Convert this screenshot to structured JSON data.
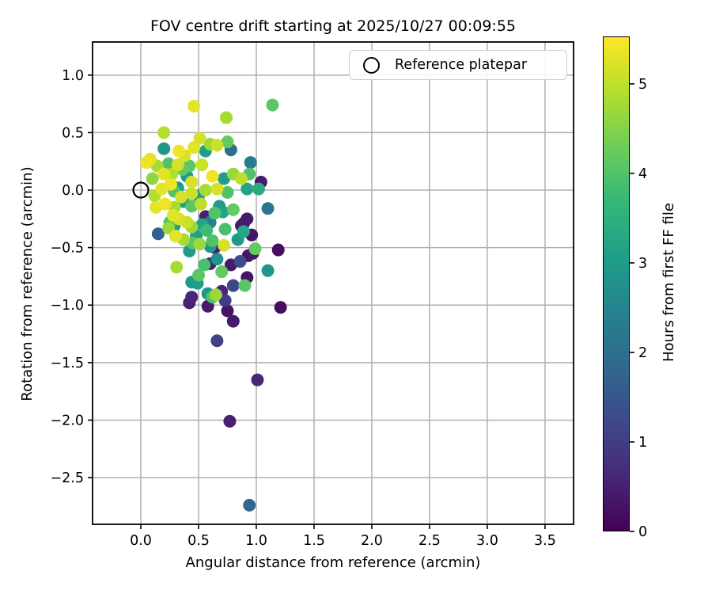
{
  "title": "FOV centre drift starting at 2025/10/27 00:09:55",
  "legend": {
    "label": "Reference platepar",
    "marker": "open-circle"
  },
  "axes": {
    "xlabel": "Angular distance from reference (arcmin)",
    "ylabel": "Rotation from reference (arcmin)"
  },
  "colorbar": {
    "label": "Hours from first FF file",
    "min": 0,
    "max": 5.53,
    "ticks": [
      0,
      1,
      2,
      3,
      4,
      5
    ]
  },
  "chart_data": {
    "type": "scatter",
    "title": "FOV centre drift starting at 2025/10/27 00:09:55",
    "xlabel": "Angular distance from reference (arcmin)",
    "ylabel": "Rotation from reference (arcmin)",
    "colorbar_label": "Hours from first FF file",
    "xlim": [
      -0.418,
      3.747
    ],
    "ylim": [
      -2.906,
      1.288
    ],
    "xticks": [
      0.0,
      0.5,
      1.0,
      1.5,
      2.0,
      2.5,
      3.0,
      3.5
    ],
    "yticks": [
      1.0,
      0.5,
      0.0,
      -0.5,
      -1.0,
      -1.5,
      -2.0,
      -2.5
    ],
    "grid": true,
    "legend_position": "upper right",
    "colormap": "viridis",
    "viridis_stops": [
      "#440154",
      "#482878",
      "#3e4989",
      "#31688e",
      "#26828e",
      "#1f9e89",
      "#35b779",
      "#6dcd59",
      "#b4de2c",
      "#fde725"
    ],
    "color_scale": {
      "min": 0,
      "max": 5.53,
      "ticks": [
        0,
        1,
        2,
        3,
        4,
        5
      ]
    },
    "reference_point": {
      "x": 0.0,
      "y": 0.0,
      "label": "Reference platepar"
    },
    "points_format": [
      "x_arcmin",
      "y_arcmin",
      "hours"
    ],
    "points": [
      [
        0.46,
        0.73,
        5.3
      ],
      [
        0.33,
        0.34,
        5.4
      ],
      [
        0.51,
        0.45,
        5.2
      ],
      [
        0.46,
        0.37,
        5.3
      ],
      [
        0.66,
        0.39,
        5.1
      ],
      [
        0.08,
        0.27,
        5.3
      ],
      [
        0.05,
        0.24,
        5.4
      ],
      [
        0.32,
        0.22,
        5.2
      ],
      [
        0.53,
        0.22,
        5.1
      ],
      [
        0.2,
        0.14,
        5.3
      ],
      [
        0.44,
        0.07,
        5.2
      ],
      [
        0.62,
        0.12,
        5.4
      ],
      [
        0.18,
        0.01,
        5.3
      ],
      [
        0.44,
        -0.03,
        5.1
      ],
      [
        0.66,
        0.01,
        5.2
      ],
      [
        0.13,
        -0.15,
        5.3
      ],
      [
        0.21,
        -0.12,
        5.4
      ],
      [
        0.33,
        -0.25,
        5.2
      ],
      [
        0.4,
        -0.28,
        5.1
      ],
      [
        0.3,
        -0.4,
        5.3
      ],
      [
        0.72,
        -0.48,
        5.2
      ],
      [
        0.87,
        0.1,
        5.0
      ],
      [
        0.38,
        0.3,
        5.2
      ],
      [
        0.26,
        0.05,
        5.4
      ],
      [
        0.35,
        -0.06,
        5.2
      ],
      [
        0.52,
        -0.12,
        5.0
      ],
      [
        0.28,
        -0.22,
        5.3
      ],
      [
        0.74,
        0.63,
        4.8
      ],
      [
        0.27,
        0.14,
        4.9
      ],
      [
        0.6,
        0.4,
        4.7
      ],
      [
        0.14,
        0.21,
        4.8
      ],
      [
        0.12,
        -0.05,
        4.9
      ],
      [
        0.56,
        0.0,
        4.8
      ],
      [
        0.8,
        0.14,
        4.7
      ],
      [
        0.29,
        -0.15,
        4.8
      ],
      [
        0.44,
        -0.32,
        4.7
      ],
      [
        0.37,
        -0.43,
        4.8
      ],
      [
        0.51,
        -0.47,
        4.7
      ],
      [
        0.31,
        -0.67,
        4.8
      ],
      [
        0.65,
        -0.91,
        4.7
      ],
      [
        0.2,
        0.5,
        4.9
      ],
      [
        0.1,
        0.1,
        4.6
      ],
      [
        0.24,
        -0.33,
        4.7
      ],
      [
        1.14,
        0.74,
        4.1
      ],
      [
        0.75,
        0.42,
        4.2
      ],
      [
        0.29,
        -0.01,
        4.0
      ],
      [
        0.44,
        -0.14,
        4.1
      ],
      [
        0.75,
        -0.02,
        4.0
      ],
      [
        0.8,
        -0.17,
        4.2
      ],
      [
        0.25,
        -0.28,
        4.0
      ],
      [
        0.45,
        -0.46,
        4.1
      ],
      [
        0.62,
        -0.44,
        4.0
      ],
      [
        0.94,
        0.14,
        4.0
      ],
      [
        0.99,
        -0.51,
        4.2
      ],
      [
        0.5,
        -0.74,
        4.1
      ],
      [
        0.7,
        -0.71,
        4.2
      ],
      [
        0.62,
        -0.93,
        4.0
      ],
      [
        0.9,
        -0.83,
        4.1
      ],
      [
        0.73,
        -0.34,
        3.9
      ],
      [
        0.36,
        0.18,
        4.2
      ],
      [
        0.57,
        -0.35,
        3.8
      ],
      [
        0.64,
        -0.2,
        4.0
      ],
      [
        0.55,
        -0.65,
        3.9
      ],
      [
        0.42,
        0.21,
        4.1
      ],
      [
        0.24,
        0.23,
        4.0
      ],
      [
        0.2,
        0.36,
        2.9
      ],
      [
        0.56,
        0.34,
        3.1
      ],
      [
        0.4,
        0.12,
        3.0
      ],
      [
        0.72,
        0.1,
        3.1
      ],
      [
        0.32,
        0.02,
        3.0
      ],
      [
        0.5,
        -0.05,
        2.9
      ],
      [
        0.37,
        -0.1,
        3.1
      ],
      [
        0.68,
        -0.14,
        3.0
      ],
      [
        0.71,
        -0.19,
        3.2
      ],
      [
        0.29,
        -0.31,
        3.0
      ],
      [
        0.48,
        -0.4,
        3.1
      ],
      [
        0.6,
        -0.49,
        2.9
      ],
      [
        0.42,
        -0.53,
        3.0
      ],
      [
        0.92,
        0.01,
        3.2
      ],
      [
        1.02,
        0.01,
        3.4
      ],
      [
        1.1,
        -0.7,
        2.9
      ],
      [
        0.44,
        -0.8,
        3.0
      ],
      [
        0.49,
        -0.81,
        3.1
      ],
      [
        0.58,
        -0.9,
        2.9
      ],
      [
        0.84,
        -0.43,
        3.0
      ],
      [
        0.89,
        -0.36,
        3.3
      ],
      [
        0.66,
        -0.6,
        2.8
      ],
      [
        0.53,
        -0.3,
        3.2
      ],
      [
        0.78,
        0.35,
        2.0
      ],
      [
        0.95,
        0.24,
        2.3
      ],
      [
        1.1,
        -0.16,
        2.2
      ],
      [
        0.15,
        -0.38,
        1.7
      ],
      [
        0.94,
        -2.74,
        1.8
      ],
      [
        0.6,
        -0.28,
        2.4
      ],
      [
        0.66,
        -1.31,
        1.1
      ],
      [
        0.8,
        -0.83,
        1.2
      ],
      [
        0.73,
        -0.96,
        1.0
      ],
      [
        0.86,
        -0.62,
        1.3
      ],
      [
        1.04,
        0.07,
        0.4
      ],
      [
        0.56,
        -0.23,
        0.5
      ],
      [
        0.89,
        -0.29,
        0.3
      ],
      [
        0.92,
        -0.25,
        0.4
      ],
      [
        0.64,
        -0.5,
        0.5
      ],
      [
        0.87,
        -0.31,
        0.4
      ],
      [
        0.96,
        -0.39,
        0.3
      ],
      [
        1.19,
        -0.52,
        0.2
      ],
      [
        0.6,
        -0.64,
        0.5
      ],
      [
        0.78,
        -0.65,
        0.4
      ],
      [
        0.92,
        -0.76,
        0.3
      ],
      [
        0.42,
        -0.98,
        0.5
      ],
      [
        0.44,
        -0.93,
        0.6
      ],
      [
        0.58,
        -1.01,
        0.4
      ],
      [
        0.75,
        -1.05,
        0.3
      ],
      [
        0.8,
        -1.14,
        0.4
      ],
      [
        1.21,
        -1.02,
        0.2
      ],
      [
        1.01,
        -1.65,
        0.6
      ],
      [
        0.77,
        -2.01,
        0.5
      ],
      [
        0.7,
        -0.88,
        0.6
      ],
      [
        0.97,
        -0.55,
        0.4
      ],
      [
        0.93,
        -0.57,
        0.3
      ]
    ]
  },
  "style_colors": {
    "grid": "#b0b0b0",
    "spine": "#000000",
    "text": "#000000",
    "legend_border": "#cccccc"
  }
}
